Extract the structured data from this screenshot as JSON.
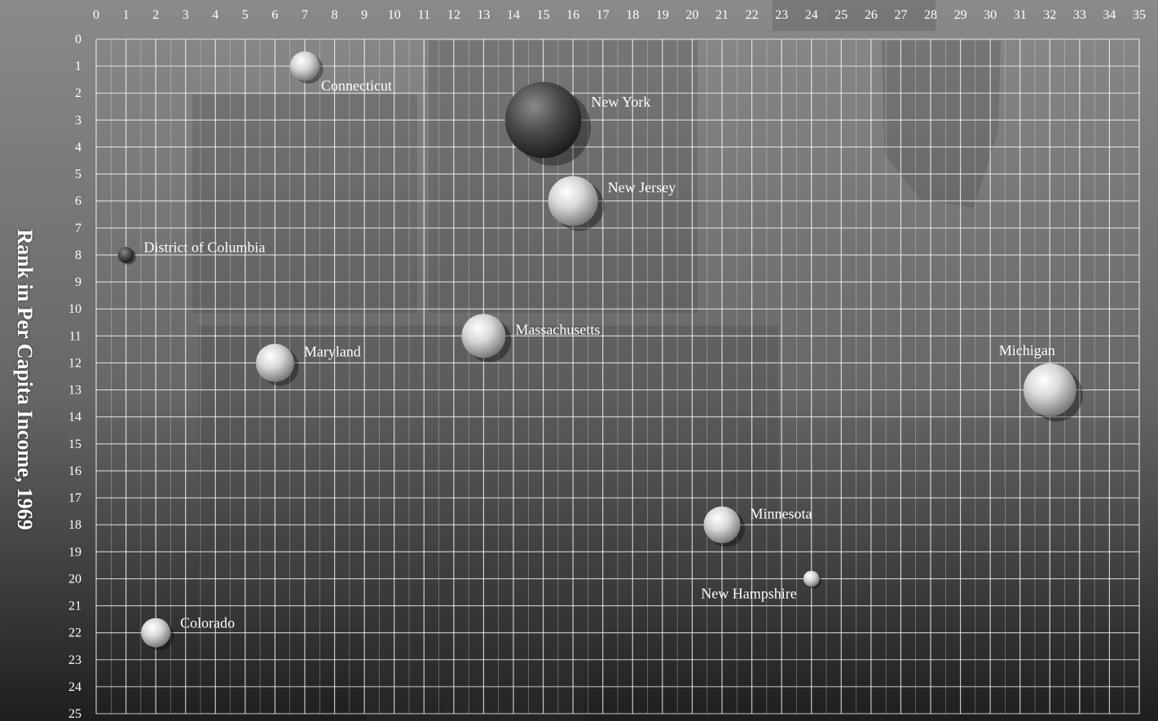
{
  "chart_data": {
    "type": "scatter",
    "title": "",
    "ylabel": "Rank in Per Capita Income, 1969",
    "xlabel": "",
    "xlim": [
      0,
      35
    ],
    "ylim": [
      0,
      25
    ],
    "y_inverted": true,
    "grid": true,
    "x_ticks": [
      0,
      1,
      2,
      3,
      4,
      5,
      6,
      7,
      8,
      9,
      10,
      11,
      12,
      13,
      14,
      15,
      16,
      17,
      18,
      19,
      20,
      21,
      22,
      23,
      24,
      25,
      26,
      27,
      28,
      29,
      30,
      31,
      32,
      33,
      34,
      35
    ],
    "y_ticks": [
      0,
      1,
      2,
      3,
      4,
      5,
      6,
      7,
      8,
      9,
      10,
      11,
      12,
      13,
      14,
      15,
      16,
      17,
      18,
      19,
      20,
      21,
      22,
      23,
      24,
      25
    ],
    "points": [
      {
        "label": "Connecticut",
        "x": 7,
        "y": 1,
        "size": 1.0,
        "label_pos": "below-right"
      },
      {
        "label": "New York",
        "x": 15,
        "y": 3,
        "size": 2.6,
        "label_pos": "right-above"
      },
      {
        "label": "New Jersey",
        "x": 16,
        "y": 6,
        "size": 1.7,
        "label_pos": "right-above"
      },
      {
        "label": "District of Columbia",
        "x": 1,
        "y": 8,
        "size": 0.55,
        "label_pos": "right-above"
      },
      {
        "label": "Maryland",
        "x": 6,
        "y": 12,
        "size": 1.3,
        "label_pos": "right-above"
      },
      {
        "label": "Massachusetts",
        "x": 13,
        "y": 11,
        "size": 1.5,
        "label_pos": "right"
      },
      {
        "label": "Michigan",
        "x": 32,
        "y": 13,
        "size": 1.8,
        "label_pos": "above-left"
      },
      {
        "label": "Minnesota",
        "x": 21,
        "y": 18,
        "size": 1.25,
        "label_pos": "right-above"
      },
      {
        "label": "New Hampshire",
        "x": 24,
        "y": 20,
        "size": 0.55,
        "label_pos": "below-left"
      },
      {
        "label": "Colorado",
        "x": 2,
        "y": 22,
        "size": 1.0,
        "label_pos": "right-above"
      }
    ]
  },
  "colors": {
    "background": "#6f6f6f",
    "grid": "#ffffff",
    "text": "#ffffff",
    "sphere_light": "#f4f4f4",
    "sphere_dark": "#7a7a7a"
  }
}
